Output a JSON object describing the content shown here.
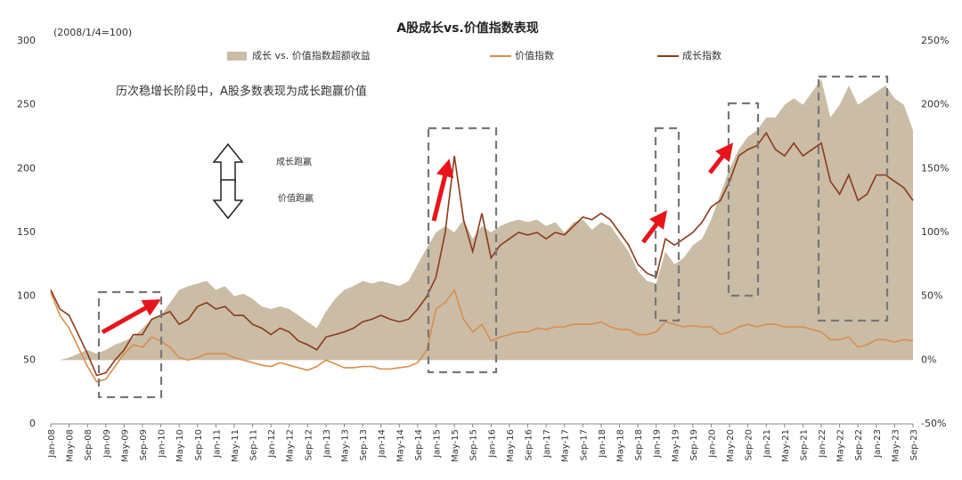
{
  "chart_data": {
    "type": "line",
    "title": "A股成长vs.价值指数表现",
    "subtitle": "(2008/1/4=100)",
    "annotations": [
      "历次稳增长阶段中，A股多数表现为成长跑赢价值",
      "成长跑赢",
      "价值跑赢"
    ],
    "categories": [
      "Jan-08",
      null,
      "May-08",
      null,
      "Sep-08",
      null,
      "Jan-09",
      null,
      "May-09",
      null,
      "Sep-09",
      null,
      "Jan-10",
      null,
      "May-10",
      null,
      "Sep-10",
      null,
      "Jan-11",
      null,
      "May-11",
      null,
      "Sep-11",
      null,
      "Jan-12",
      null,
      "May-12",
      null,
      "Sep-12",
      null,
      "Jan-13",
      null,
      "May-13",
      null,
      "Sep-13",
      null,
      "Jan-14",
      null,
      "May-14",
      null,
      "Sep-14",
      null,
      "Jan-15",
      null,
      "May-15",
      null,
      "Sep-15",
      null,
      "Jan-16",
      null,
      "May-16",
      null,
      "Sep-16",
      null,
      "Jan-17",
      null,
      "May-17",
      null,
      "Sep-17",
      null,
      "Jan-18",
      null,
      "May-18",
      null,
      "Sep-18",
      null,
      "Jan-19",
      null,
      "May-19",
      null,
      "Sep-19",
      null,
      "Jan-20",
      null,
      "May-20",
      null,
      "Sep-20",
      null,
      "Jan-21",
      null,
      "May-21",
      null,
      "Sep-21",
      null,
      "Jan-22",
      null,
      "May-22",
      null,
      "Sep-22",
      null,
      "Jan-23",
      null,
      "May-23",
      null,
      "Sep-23"
    ],
    "series": [
      {
        "name": "成长 vs. 价值指数超额收益",
        "type": "area",
        "axis": "y2",
        "color": "#cbbca6",
        "values": [
          0,
          0,
          2,
          5,
          8,
          5,
          8,
          12,
          15,
          18,
          25,
          32,
          35,
          45,
          55,
          58,
          60,
          62,
          55,
          58,
          50,
          52,
          48,
          42,
          40,
          42,
          40,
          35,
          30,
          25,
          38,
          48,
          55,
          58,
          62,
          60,
          62,
          60,
          58,
          62,
          75,
          88,
          100,
          105,
          100,
          110,
          95,
          105,
          100,
          105,
          108,
          110,
          108,
          110,
          105,
          108,
          100,
          108,
          110,
          102,
          108,
          105,
          95,
          85,
          70,
          62,
          60,
          85,
          75,
          80,
          90,
          95,
          110,
          130,
          150,
          165,
          175,
          180,
          190,
          190,
          200,
          205,
          200,
          210,
          220,
          190,
          200,
          215,
          200,
          205,
          210,
          215,
          205,
          200,
          180
        ]
      },
      {
        "name": "价值指数",
        "type": "line",
        "color": "#d98e4c",
        "values": [
          103,
          85,
          75,
          60,
          45,
          33,
          35,
          45,
          55,
          62,
          60,
          68,
          65,
          60,
          52,
          50,
          52,
          55,
          55,
          55,
          52,
          50,
          48,
          46,
          45,
          48,
          46,
          44,
          42,
          45,
          50,
          47,
          44,
          44,
          45,
          45,
          43,
          43,
          44,
          45,
          48,
          58,
          90,
          95,
          105,
          82,
          72,
          78,
          65,
          68,
          70,
          72,
          72,
          75,
          74,
          76,
          76,
          78,
          78,
          78,
          80,
          76,
          74,
          74,
          70,
          70,
          72,
          80,
          78,
          76,
          77,
          76,
          76,
          70,
          72,
          76,
          78,
          76,
          78,
          78,
          76,
          76,
          76,
          74,
          72,
          66,
          66,
          68,
          60,
          62,
          66,
          66,
          64,
          66,
          65
        ]
      },
      {
        "name": "成长指数",
        "type": "line",
        "color": "#8b3a1a",
        "values": [
          105,
          90,
          85,
          70,
          55,
          38,
          40,
          50,
          58,
          70,
          70,
          82,
          85,
          88,
          78,
          82,
          92,
          95,
          90,
          92,
          85,
          85,
          78,
          75,
          70,
          75,
          72,
          65,
          62,
          58,
          68,
          70,
          72,
          75,
          80,
          82,
          85,
          82,
          80,
          82,
          90,
          100,
          115,
          150,
          210,
          160,
          135,
          165,
          130,
          140,
          145,
          150,
          148,
          150,
          145,
          150,
          148,
          155,
          162,
          160,
          165,
          160,
          150,
          140,
          125,
          118,
          115,
          145,
          140,
          145,
          150,
          158,
          170,
          175,
          190,
          210,
          215,
          218,
          228,
          215,
          210,
          220,
          210,
          215,
          220,
          190,
          180,
          195,
          175,
          180,
          195,
          195,
          190,
          185,
          175
        ]
      }
    ],
    "ylim": [
      0,
      300
    ],
    "yticks": [
      0,
      50,
      100,
      150,
      200,
      250,
      300
    ],
    "y2lim": [
      -50,
      250
    ],
    "y2ticks": [
      {
        "value": -50,
        "label": "-50%"
      },
      {
        "value": 0,
        "label": "0%"
      },
      {
        "value": 50,
        "label": "50%"
      },
      {
        "value": 100,
        "label": "100%"
      },
      {
        "value": 150,
        "label": "150%"
      },
      {
        "value": 200,
        "label": "200%"
      },
      {
        "value": 250,
        "label": "250%"
      }
    ]
  }
}
